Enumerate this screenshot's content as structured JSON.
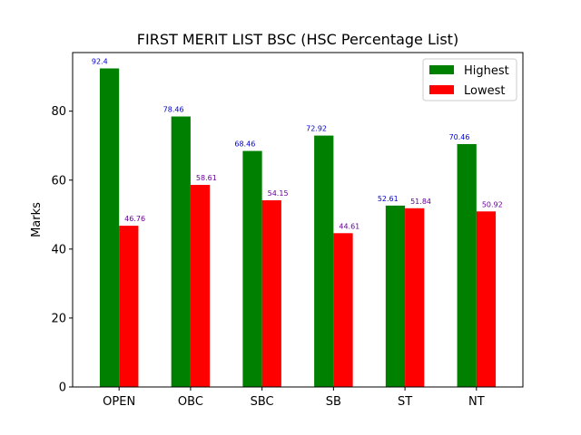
{
  "chart_data": {
    "type": "bar",
    "title": "FIRST MERIT LIST BSC (HSC Percentage List)",
    "xlabel": "",
    "ylabel": "Marks",
    "categories": [
      "OPEN",
      "OBC",
      "SBC",
      "SB",
      "ST",
      "NT"
    ],
    "series": [
      {
        "name": "Highest",
        "color": "#008000",
        "label_color": "#0000cc",
        "values": [
          92.4,
          78.46,
          68.46,
          72.92,
          52.61,
          70.46
        ]
      },
      {
        "name": "Lowest",
        "color": "#ff0000",
        "label_color": "#660099",
        "values": [
          46.76,
          58.61,
          54.15,
          44.61,
          51.84,
          50.92
        ]
      }
    ],
    "ylim": [
      0,
      97
    ],
    "yticks": [
      0,
      20,
      40,
      60,
      80
    ],
    "grid": false,
    "legend_position": "top-right"
  }
}
